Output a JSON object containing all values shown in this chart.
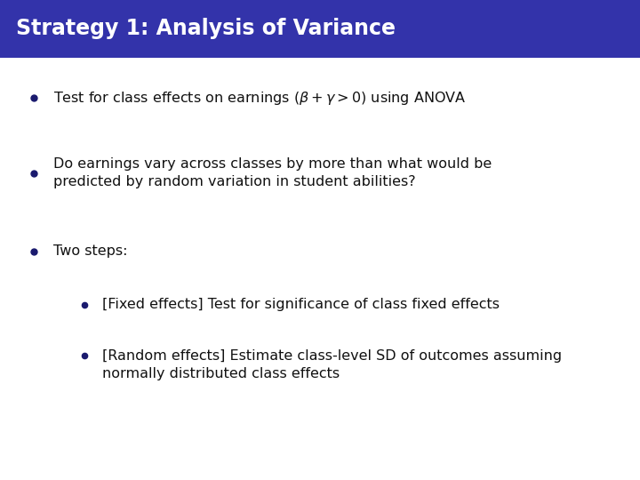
{
  "title": "Strategy 1: Analysis of Variance",
  "title_bg_color": "#3333aa",
  "title_text_color": "#ffffff",
  "title_fontsize": 17,
  "body_bg_color": "#ffffff",
  "bullet_color": "#1a1a6e",
  "bullet_fontsize": 11.5,
  "sub_bullet_fontsize": 11.5,
  "bullet1_text": "Test for class effects on earnings $(\\beta + \\gamma > 0)$ using ANOVA",
  "bullet2_line1": "Do earnings vary across classes by more than what would be",
  "bullet2_line2": "predicted by random variation in student abilities?",
  "bullet3_text": "Two steps:",
  "sub_bullet1": "[Fixed effects] Test for significance of class fixed effects",
  "sub_bullet2_line1": "[Random effects] Estimate class-level SD of outcomes assuming",
  "sub_bullet2_line2": "normally distributed class effects"
}
